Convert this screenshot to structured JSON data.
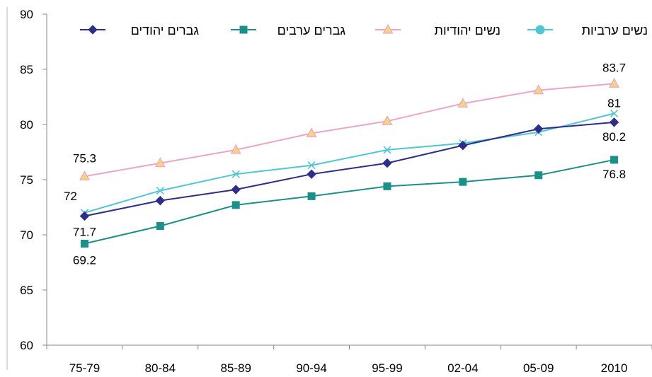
{
  "chart_data": {
    "type": "line",
    "categories": [
      "75-79",
      "80-84",
      "85-89",
      "90-94",
      "95-99",
      "02-04",
      "05-09",
      "2010"
    ],
    "ylim": [
      60,
      90
    ],
    "yticks": [
      60,
      65,
      70,
      75,
      80,
      85,
      90
    ],
    "grid": false,
    "legend_position": "top",
    "series": [
      {
        "name": "גברים יהודים",
        "color": "#2E2E8A",
        "marker": "diamond",
        "values": [
          71.7,
          73.1,
          74.1,
          75.5,
          76.5,
          78.1,
          79.6,
          80.2
        ],
        "data_labels": {
          "0": "71.7",
          "7": "80.2"
        }
      },
      {
        "name": "גברים ערבים",
        "color": "#1B9089",
        "marker": "square",
        "values": [
          69.2,
          70.8,
          72.7,
          73.5,
          74.4,
          74.8,
          75.4,
          76.8
        ],
        "data_labels": {
          "0": "69.2",
          "7": "76.8"
        }
      },
      {
        "name": "נשים יהודיות",
        "color": "#E9A6C6",
        "marker": "triangle",
        "marker_fill": "#F7D37E",
        "values": [
          75.3,
          76.5,
          77.7,
          79.2,
          80.3,
          81.9,
          83.1,
          83.7
        ],
        "data_labels": {
          "0": "75.3",
          "7": "83.7"
        }
      },
      {
        "name": "נשים ערביות",
        "color": "#4EC6D6",
        "marker": "x",
        "legend_marker": "circle",
        "values": [
          72.0,
          74.0,
          75.5,
          76.3,
          77.7,
          78.3,
          79.3,
          81.0
        ],
        "data_labels": {
          "0": "72",
          "7": "81"
        }
      }
    ]
  }
}
